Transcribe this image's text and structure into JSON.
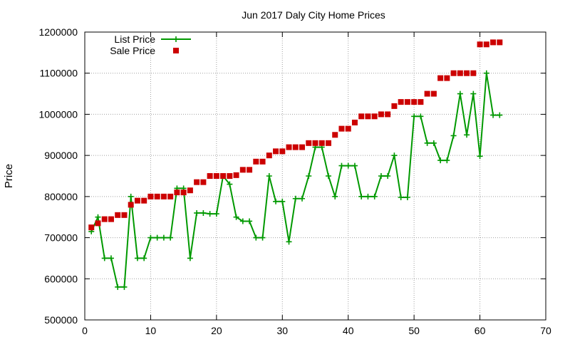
{
  "chart_data": {
    "type": "line",
    "title": "Jun 2017 Daly City Home Prices",
    "xlabel": "",
    "ylabel": "Price",
    "xlim": [
      0,
      70
    ],
    "ylim": [
      500000,
      1200000
    ],
    "xticks": [
      0,
      10,
      20,
      30,
      40,
      50,
      60,
      70
    ],
    "yticks": [
      500000,
      600000,
      700000,
      800000,
      900000,
      1000000,
      1100000,
      1200000
    ],
    "grid": true,
    "legend_position": "top-left",
    "series": [
      {
        "name": "List Price",
        "style": "line-points",
        "marker": "plus",
        "color": "#009900",
        "x": [
          1,
          2,
          3,
          4,
          5,
          6,
          7,
          8,
          9,
          10,
          11,
          12,
          13,
          14,
          15,
          16,
          17,
          18,
          19,
          20,
          21,
          22,
          23,
          24,
          25,
          26,
          27,
          28,
          29,
          30,
          31,
          32,
          33,
          34,
          35,
          36,
          37,
          38,
          39,
          40,
          41,
          42,
          43,
          44,
          45,
          46,
          47,
          48,
          49,
          50,
          51,
          52,
          53,
          54,
          55,
          56,
          57,
          58,
          59,
          60,
          61,
          62,
          63
        ],
        "y": [
          715000,
          750000,
          650000,
          650000,
          580000,
          580000,
          800000,
          650000,
          650000,
          700000,
          700000,
          700000,
          700000,
          820000,
          820000,
          650000,
          760000,
          760000,
          758000,
          758000,
          850000,
          830000,
          750000,
          740000,
          740000,
          700000,
          700000,
          850000,
          788000,
          788000,
          690000,
          795000,
          795000,
          850000,
          920000,
          920000,
          850000,
          800000,
          875000,
          875000,
          875000,
          800000,
          800000,
          800000,
          850000,
          850000,
          900000,
          798000,
          798000,
          995000,
          995000,
          930000,
          930000,
          888000,
          888000,
          948000,
          1050000,
          950000,
          1050000,
          898000,
          1100000,
          998000,
          998000
        ]
      },
      {
        "name": "Sale Price",
        "style": "points",
        "marker": "square",
        "color": "#cc0000",
        "x": [
          1,
          2,
          3,
          4,
          5,
          6,
          7,
          8,
          9,
          10,
          11,
          12,
          13,
          14,
          15,
          16,
          17,
          18,
          19,
          20,
          21,
          22,
          23,
          24,
          25,
          26,
          27,
          28,
          29,
          30,
          31,
          32,
          33,
          34,
          35,
          36,
          37,
          38,
          39,
          40,
          41,
          42,
          43,
          44,
          45,
          46,
          47,
          48,
          49,
          50,
          51,
          52,
          53,
          54,
          55,
          56,
          57,
          58,
          59,
          60,
          61,
          62,
          63
        ],
        "y": [
          725000,
          735000,
          745000,
          745000,
          755000,
          755000,
          780000,
          790000,
          790000,
          800000,
          800000,
          800000,
          800000,
          810000,
          810000,
          815000,
          835000,
          835000,
          850000,
          850000,
          850000,
          850000,
          852000,
          865000,
          865000,
          885000,
          885000,
          900000,
          910000,
          910000,
          920000,
          920000,
          920000,
          930000,
          930000,
          930000,
          930000,
          950000,
          965000,
          965000,
          980000,
          995000,
          995000,
          995000,
          1000000,
          1000000,
          1020000,
          1030000,
          1030000,
          1030000,
          1030000,
          1050000,
          1050000,
          1088000,
          1088000,
          1100000,
          1100000,
          1100000,
          1100000,
          1170000,
          1170000,
          1175000,
          1175000
        ]
      }
    ]
  }
}
